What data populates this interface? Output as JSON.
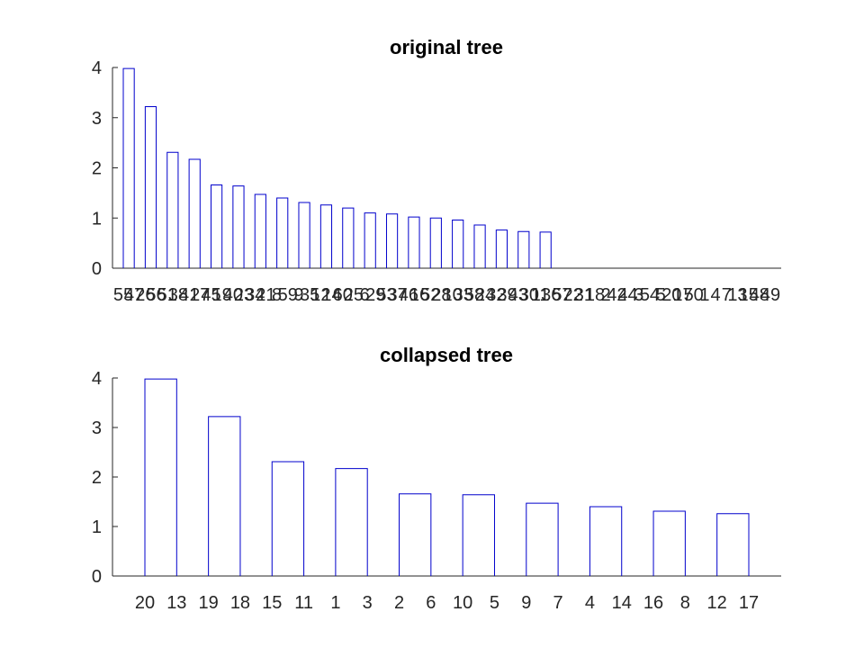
{
  "chart_data": [
    {
      "type": "dendrogram",
      "title": "original tree",
      "xlabel": "",
      "ylabel": "",
      "ylim": [
        0,
        4
      ],
      "yticks": [
        0,
        1,
        2,
        3,
        4
      ],
      "grid": false,
      "leaf_order": [
        "55",
        "47",
        "26",
        "56",
        "51",
        "38",
        "41",
        "27",
        "45",
        "19",
        "40",
        "23",
        "34",
        "21",
        "8",
        "59",
        "9",
        "35",
        "12",
        "14",
        "60",
        "25",
        "6",
        "29",
        "53",
        "37",
        "46",
        "16",
        "52",
        "28",
        "10",
        "33",
        "58",
        "24",
        "32",
        "39",
        "43",
        "30",
        "11",
        "36",
        "57",
        "22",
        "31",
        "18",
        "2",
        "42",
        "44",
        "3",
        "54",
        "5",
        "20",
        "17",
        "50",
        "1",
        "4",
        "7",
        "13",
        "15",
        "48",
        "49"
      ],
      "links": [
        {
          "x1": 1,
          "x2": 2,
          "height": 3.98
        },
        {
          "x1": 3,
          "x2": 4,
          "height": 3.22
        },
        {
          "x1": 5,
          "x2": 6,
          "height": 2.31
        },
        {
          "x1": 7,
          "x2": 8,
          "height": 2.17
        },
        {
          "x1": 9,
          "x2": 10,
          "height": 1.66
        },
        {
          "x1": 11,
          "x2": 12,
          "height": 1.64
        },
        {
          "x1": 13,
          "x2": 14,
          "height": 1.47
        },
        {
          "x1": 15,
          "x2": 16,
          "height": 1.4
        },
        {
          "x1": 17,
          "x2": 18,
          "height": 1.31
        },
        {
          "x1": 19,
          "x2": 20,
          "height": 1.26
        },
        {
          "x1": 21,
          "x2": 22,
          "height": 1.2
        },
        {
          "x1": 23,
          "x2": 24,
          "height": 1.1
        },
        {
          "x1": 25,
          "x2": 26,
          "height": 1.08
        },
        {
          "x1": 27,
          "x2": 28,
          "height": 1.02
        },
        {
          "x1": 29,
          "x2": 30,
          "height": 1.0
        },
        {
          "x1": 31,
          "x2": 32,
          "height": 0.96
        },
        {
          "x1": 33,
          "x2": 34,
          "height": 0.86
        },
        {
          "x1": 35,
          "x2": 36,
          "height": 0.76
        },
        {
          "x1": 37,
          "x2": 38,
          "height": 0.73
        },
        {
          "x1": 39,
          "x2": 40,
          "height": 0.72
        }
      ]
    },
    {
      "type": "dendrogram",
      "title": "collapsed tree",
      "xlabel": "",
      "ylabel": "",
      "ylim": [
        0,
        4
      ],
      "yticks": [
        0,
        1,
        2,
        3,
        4
      ],
      "grid": false,
      "leaf_order": [
        "20",
        "13",
        "19",
        "18",
        "15",
        "11",
        "1",
        "3",
        "2",
        "6",
        "10",
        "5",
        "9",
        "7",
        "4",
        "14",
        "16",
        "8",
        "12",
        "17"
      ],
      "links": [
        {
          "x1": 1,
          "x2": 2,
          "height": 3.98
        },
        {
          "x1": 3,
          "x2": 4,
          "height": 3.22
        },
        {
          "x1": 5,
          "x2": 6,
          "height": 2.31
        },
        {
          "x1": 7,
          "x2": 8,
          "height": 2.17
        },
        {
          "x1": 9,
          "x2": 10,
          "height": 1.66
        },
        {
          "x1": 11,
          "x2": 12,
          "height": 1.64
        },
        {
          "x1": 13,
          "x2": 14,
          "height": 1.47
        },
        {
          "x1": 15,
          "x2": 16,
          "height": 1.4
        },
        {
          "x1": 17,
          "x2": 18,
          "height": 1.31
        },
        {
          "x1": 19,
          "x2": 20,
          "height": 1.26
        },
        {
          "x1": 21,
          "x2": 22,
          "height": 1.2
        },
        {
          "x1": 23,
          "x2": 24,
          "height": 1.1
        },
        {
          "x1": 25,
          "x2": 26,
          "height": 1.08
        },
        {
          "x1": 27,
          "x2": 28,
          "height": 1.02
        },
        {
          "x1": 29,
          "x2": 30,
          "height": 1.0
        },
        {
          "x1": 31,
          "x2": 32,
          "height": 0.96
        },
        {
          "x1": 33,
          "x2": 34,
          "height": 0.86
        },
        {
          "x1": 35,
          "x2": 36,
          "height": 0.76
        },
        {
          "x1": 37,
          "x2": 38,
          "height": 0.73
        },
        {
          "x1": 39,
          "x2": 40,
          "height": 0.72
        }
      ]
    }
  ],
  "colors": {
    "link": "#0000cc",
    "axis": "#262626",
    "text": "#000000"
  }
}
